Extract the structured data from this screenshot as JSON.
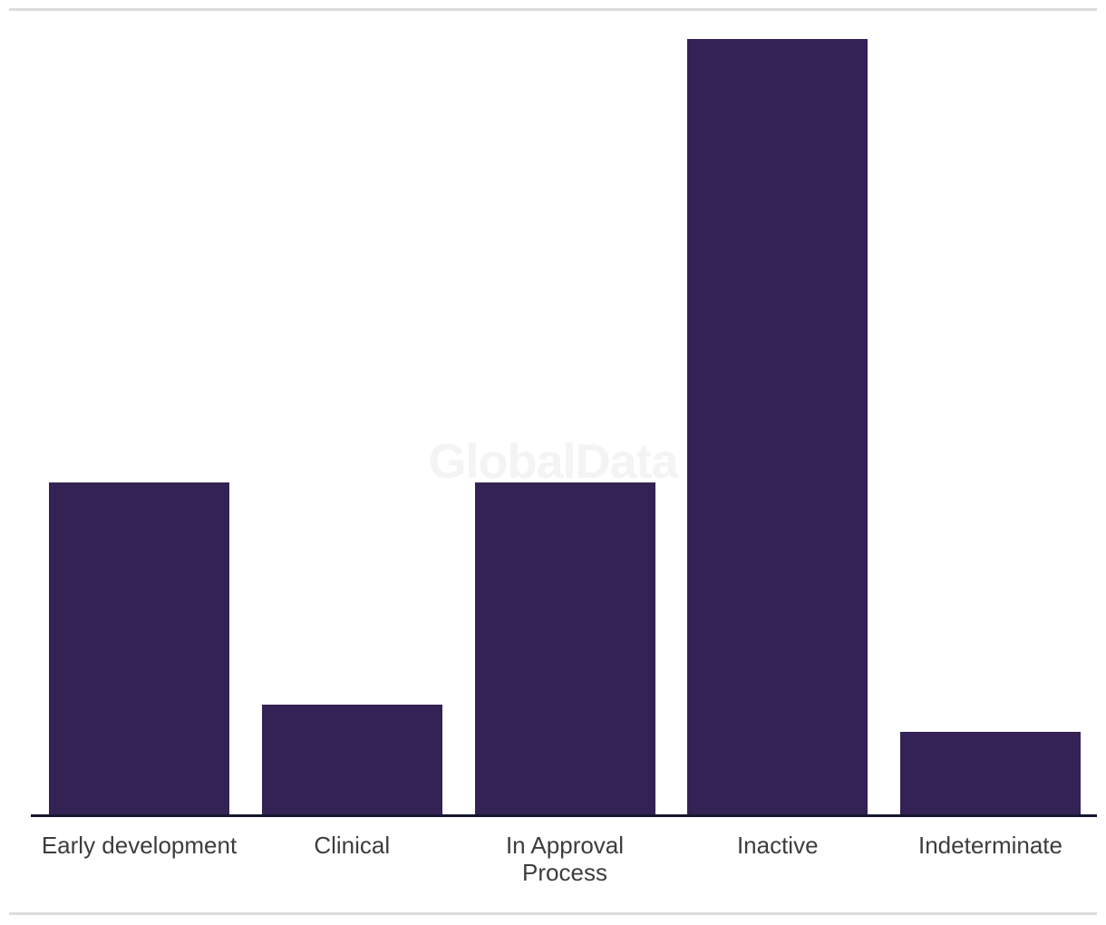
{
  "page": {
    "background": "#ffffff",
    "divider_color": "#dcdcdc"
  },
  "chart": {
    "watermark": "GlobalData",
    "watermark_color": "#f4f4f4",
    "bar_color": "#342255",
    "axis_color": "#161630",
    "tick_label_color": "#3d3d3d"
  },
  "chart_data": {
    "type": "bar",
    "title": "",
    "xlabel": "",
    "ylabel": "",
    "categories": [
      "Early development",
      "Clinical",
      "In Approval Process",
      "Inactive",
      "Indeterminate"
    ],
    "values": [
      12,
      4,
      12,
      28,
      3
    ],
    "value_note": "no y-axis, gridlines or data labels are shown; values estimated from relative bar heights (fractions of tallest bar: 0.43, 0.14, 0.43, 1.00, 0.11)",
    "tick_label_lines": [
      [
        "Early development"
      ],
      [
        "Clinical"
      ],
      [
        "In Approval",
        "Process"
      ],
      [
        "Inactive"
      ],
      [
        "Indeterminate"
      ]
    ],
    "y_axis_visible": false,
    "gridlines": false,
    "legend": false,
    "watermark": "GlobalData"
  }
}
